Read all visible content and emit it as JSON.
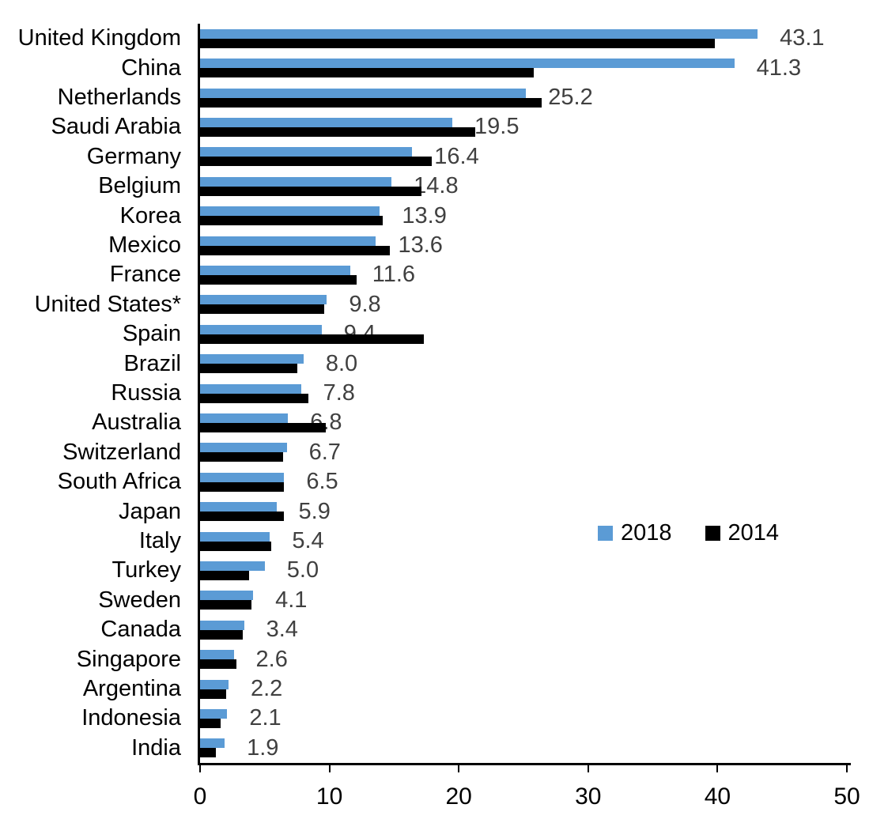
{
  "chart_data": {
    "type": "bar",
    "orientation": "horizontal",
    "title": "",
    "xlabel": "",
    "ylabel": "",
    "xlim": [
      0,
      50
    ],
    "x_ticks": [
      "0",
      "10",
      "20",
      "30",
      "40",
      "50"
    ],
    "grid": false,
    "categories": [
      "United Kingdom",
      "China",
      "Netherlands",
      "Saudi Arabia",
      "Germany",
      "Belgium",
      "Korea",
      "Mexico",
      "France",
      "United States*",
      "Spain",
      "Brazil",
      "Russia",
      "Australia",
      "Switzerland",
      "South Africa",
      "Japan",
      "Italy",
      "Turkey",
      "Sweden",
      "Canada",
      "Singapore",
      "Argentina",
      "Indonesia",
      "India"
    ],
    "series": [
      {
        "name": "2018",
        "color": "#5B9BD5",
        "values": [
          43.1,
          41.3,
          25.2,
          19.5,
          16.4,
          14.8,
          13.9,
          13.6,
          11.6,
          9.8,
          9.4,
          8.0,
          7.8,
          6.8,
          6.7,
          6.5,
          5.9,
          5.4,
          5.0,
          4.1,
          3.4,
          2.6,
          2.2,
          2.1,
          1.9
        ]
      },
      {
        "name": "2014",
        "color": "#000000",
        "values": [
          39.8,
          25.8,
          26.4,
          21.3,
          17.9,
          17.1,
          14.1,
          14.7,
          12.1,
          9.6,
          17.3,
          7.5,
          8.4,
          9.7,
          6.4,
          6.5,
          6.5,
          5.5,
          3.8,
          4.0,
          3.3,
          2.8,
          2.0,
          1.6,
          1.2
        ]
      }
    ],
    "data_labels": {
      "attached_to_series": "2018",
      "values": [
        "43.1",
        "41.3",
        "25.2",
        "19.5",
        "16.4",
        "14.8",
        "13.9",
        "13.6",
        "11.6",
        "9.8",
        "9.4",
        "8.0",
        "7.8",
        "6.8",
        "6.7",
        "6.5",
        "5.9",
        "5.4",
        "5.0",
        "4.1",
        "3.4",
        "2.6",
        "2.2",
        "2.1",
        "1.9"
      ]
    },
    "legend": {
      "position": "inside-right-middle",
      "entries": [
        {
          "label": "2018",
          "color": "#5B9BD5"
        },
        {
          "label": "2014",
          "color": "#000000"
        }
      ]
    }
  },
  "colors": {
    "background": "#FFFFFF",
    "axis": "#000000",
    "category_text": "#000000",
    "tick_text": "#000000",
    "value_label_text": "#404040",
    "series_2018": "#5B9BD5",
    "series_2014": "#000000"
  }
}
